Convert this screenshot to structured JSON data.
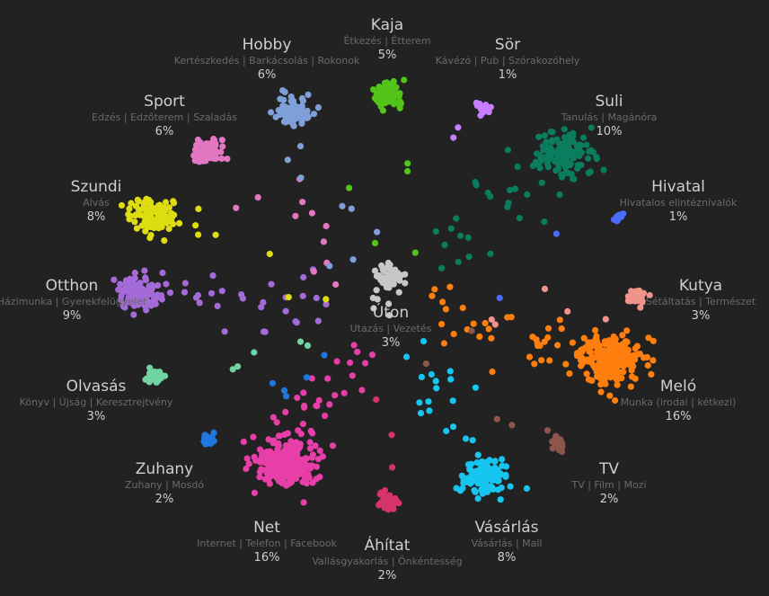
{
  "chart_data": {
    "type": "scatter",
    "title": "",
    "activities": [
      {
        "name": "Kaja",
        "sub": "Étkezés | Étterem",
        "pct": "5%",
        "color": "#52c41a"
      },
      {
        "name": "Sör",
        "sub": "Kávézó | Pub | Szórakozóhely",
        "pct": "1%",
        "color": "#c77dff"
      },
      {
        "name": "Suli",
        "sub": "Tanulás | Magánóra",
        "pct": "10%",
        "color": "#0a7d5e"
      },
      {
        "name": "Hivatal",
        "sub": "Hivatalos elintéznivalók",
        "pct": "1%",
        "color": "#4a6cf7"
      },
      {
        "name": "Kutya",
        "sub": "Sétáltatás | Természet",
        "pct": "3%",
        "color": "#f0938a"
      },
      {
        "name": "Meló",
        "sub": "Munka (irodai | kétkezi)",
        "pct": "16%",
        "color": "#ff7f0e"
      },
      {
        "name": "TV",
        "sub": "TV | Film | Mozi",
        "pct": "2%",
        "color": "#8c564b"
      },
      {
        "name": "Vásárlás",
        "sub": "Vásárlás | Mall",
        "pct": "8%",
        "color": "#17c6f0"
      },
      {
        "name": "Áhítat",
        "sub": "Vallásgyakorlás | Önkéntesség",
        "pct": "2%",
        "color": "#d6336c"
      },
      {
        "name": "Net",
        "sub": "Internet | Telefon | Facebook",
        "pct": "16%",
        "color": "#e83ea8"
      },
      {
        "name": "Zuhany",
        "sub": "Zuhany | Mosdó",
        "pct": "2%",
        "color": "#1f77e0"
      },
      {
        "name": "Olvasás",
        "sub": "Könyv | Újság | Keresztrejtvény",
        "pct": "3%",
        "color": "#6fd4a2"
      },
      {
        "name": "Otthon",
        "sub": "Házimunka | Gyerekfelügyelet",
        "pct": "9%",
        "color": "#a46ad8"
      },
      {
        "name": "Szundi",
        "sub": "Alvás",
        "pct": "8%",
        "color": "#dddd11"
      },
      {
        "name": "Sport",
        "sub": "Edzés | Edzőterem | Szaladás",
        "pct": "6%",
        "color": "#e377c2"
      },
      {
        "name": "Hobby",
        "sub": "Kertészkedés | Barkácsolás | Rokonok",
        "pct": "6%",
        "color": "#7f9fd8"
      },
      {
        "name": "Úton",
        "sub": "Utazás | Vezetés",
        "pct": "3%",
        "color": "#c7c7c7"
      }
    ]
  }
}
